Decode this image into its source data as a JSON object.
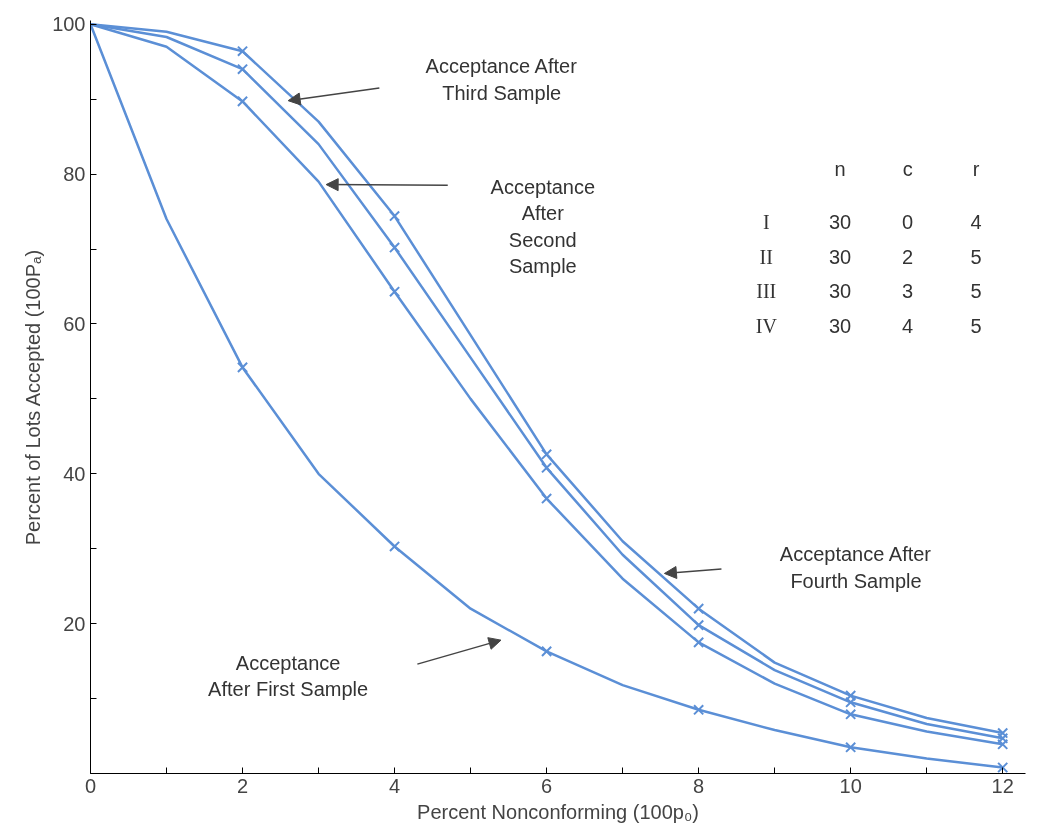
{
  "chart_data": {
    "type": "line",
    "xlabel": "Percent Nonconforming (100p₀)",
    "ylabel": "Percent of Lots Accepted (100Pₐ)",
    "x": [
      0,
      1,
      2,
      3,
      4,
      5,
      6,
      7,
      8,
      9,
      10,
      11,
      12
    ],
    "series": [
      {
        "marker": "none",
        "color": "#5b8fd6",
        "values": [
          100,
          74,
          54.2,
          40,
          30.3,
          22,
          16.3,
          11.8,
          8.5,
          5.8,
          3.5,
          2,
          0.8
        ]
      },
      {
        "marker": "none",
        "color": "#5b8fd6",
        "values": [
          100,
          97,
          89.7,
          79,
          64.3,
          50,
          36.7,
          26,
          17.5,
          12,
          7.9,
          5.6,
          3.9
        ]
      },
      {
        "marker": "none",
        "color": "#5b8fd6",
        "values": [
          100,
          98.3,
          94.0,
          84,
          70.2,
          55.5,
          40.8,
          29.2,
          19.8,
          13.8,
          9.5,
          6.6,
          4.7
        ]
      },
      {
        "marker": "none",
        "color": "#5b8fd6",
        "values": [
          100,
          99,
          96.4,
          87,
          74.4,
          58.5,
          42.6,
          31,
          22.0,
          14.8,
          10.4,
          7.4,
          5.4
        ]
      },
      {
        "type": "scatter",
        "marker": "cross",
        "x": [
          2,
          4,
          6,
          8,
          10,
          12
        ],
        "color": "#5b8fd6",
        "values": [
          54.2,
          30.3,
          16.3,
          8.5,
          3.5,
          0.8
        ]
      },
      {
        "type": "scatter",
        "marker": "cross",
        "x": [
          2,
          4,
          6,
          8,
          10,
          12
        ],
        "color": "#5b8fd6",
        "values": [
          89.7,
          64.3,
          36.7,
          17.5,
          7.9,
          3.9
        ]
      },
      {
        "type": "scatter",
        "marker": "cross",
        "x": [
          2,
          4,
          6,
          8,
          10,
          12
        ],
        "color": "#5b8fd6",
        "values": [
          94.0,
          70.2,
          40.8,
          19.8,
          9.5,
          4.7
        ]
      },
      {
        "type": "scatter",
        "marker": "cross",
        "x": [
          2,
          4,
          6,
          8,
          10,
          12
        ],
        "color": "#5b8fd6",
        "values": [
          96.4,
          74.4,
          42.6,
          22.0,
          10.4,
          5.4
        ]
      }
    ],
    "xlim": [
      0,
      12.3
    ],
    "ylim": [
      0,
      100.5
    ],
    "xticks": [
      0,
      {
        "value": 1,
        "label": null
      },
      2,
      {
        "value": 3,
        "label": null
      },
      4,
      {
        "value": 5,
        "label": null
      },
      6,
      {
        "value": 7,
        "label": null
      },
      8,
      {
        "value": 9,
        "label": null
      },
      10,
      {
        "value": 11,
        "label": null
      },
      12
    ],
    "yticks": [
      {
        "value": 0,
        "label": null
      },
      {
        "value": 10,
        "label": null
      },
      20,
      {
        "value": 30,
        "label": null
      },
      40,
      {
        "value": 50,
        "label": null
      },
      60,
      {
        "value": 70,
        "label": null
      },
      80,
      {
        "value": 90,
        "label": null
      },
      100
    ],
    "annotations": [
      "Acceptance After\nThird Sample",
      "Acceptance\nAfter\nSecond\nSample",
      "Acceptance After\nFourth Sample",
      "Acceptance\nAfter First Sample",
      "n c r",
      "I 30 0 4",
      "II 30 2 5",
      "III 30 3 5",
      "IV 30 4 5"
    ],
    "line_style": "solid"
  }
}
